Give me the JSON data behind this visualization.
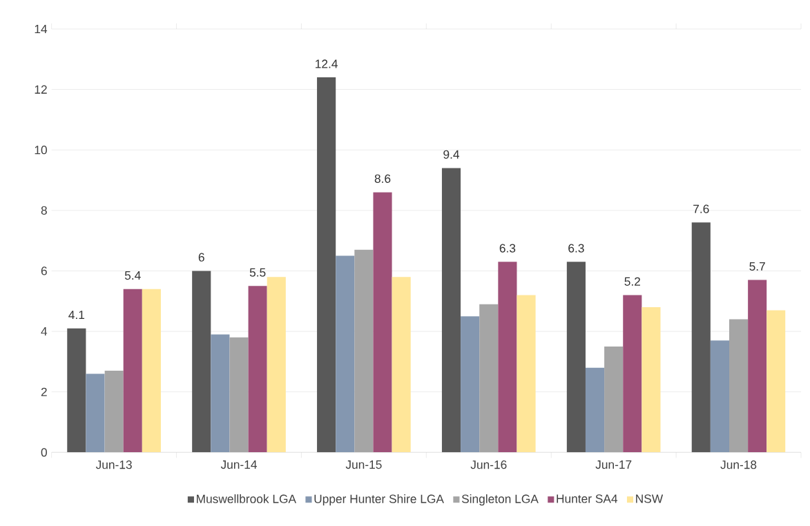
{
  "chart_data": {
    "type": "bar",
    "categories": [
      "Jun-13",
      "Jun-14",
      "Jun-15",
      "Jun-16",
      "Jun-17",
      "Jun-18"
    ],
    "series": [
      {
        "name": "Muswellbrook LGA",
        "color": "#595959",
        "values": [
          4.1,
          6,
          12.4,
          9.4,
          6.3,
          7.6
        ],
        "value_labels": [
          "4.1",
          "6",
          "12.4",
          "9.4",
          "6.3",
          "7.6"
        ]
      },
      {
        "name": "Upper Hunter Shire LGA",
        "color": "#8497b0",
        "values": [
          2.6,
          3.9,
          6.5,
          4.5,
          2.8,
          3.7
        ]
      },
      {
        "name": "Singleton LGA",
        "color": "#a5a5a5",
        "values": [
          2.7,
          3.8,
          6.7,
          4.9,
          3.5,
          4.4
        ]
      },
      {
        "name": "Hunter SA4",
        "color": "#9e5078",
        "values": [
          5.4,
          5.5,
          8.6,
          6.3,
          5.2,
          5.7
        ],
        "value_labels": [
          "5.4",
          "5.5",
          "8.6",
          "6.3",
          "5.2",
          "5.7"
        ]
      },
      {
        "name": "NSW",
        "color": "#ffe699",
        "values": [
          5.4,
          5.8,
          5.8,
          5.2,
          4.8,
          4.7
        ]
      }
    ],
    "ylim": [
      0,
      14
    ],
    "yticks": [
      0,
      2,
      4,
      6,
      8,
      10,
      12,
      14
    ],
    "grid": "y",
    "legend": "bottom"
  }
}
